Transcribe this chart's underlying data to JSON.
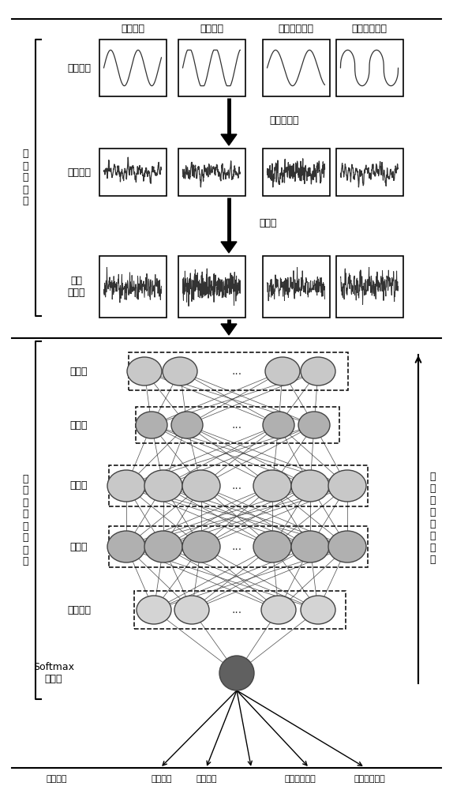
{
  "top_labels": [
    "正常磨损",
    "急剧磨损",
    "磨损振动异常",
    "锋利振动异常"
  ],
  "process_labels": [
    "傅里叶拟合",
    "归一化"
  ],
  "section_label_left_top": "数\n据\n预\n处\n理",
  "section_label_left_bot": "一\n维\n卷\n积\n神\n经\n网\n络",
  "section_label_right_bot": "误\n差\n逐\n层\n反\n向\n传\n播",
  "row_labels": [
    "原始信号",
    "电流杂波",
    "杂波\n归一化"
  ],
  "layer_labels": [
    "卷积层",
    "池化层",
    "卷积层",
    "池化层",
    "全连接层",
    "Softmax\n分类器"
  ],
  "bottom_labels": [
    "识别结果",
    "正常磨损",
    "急剧磨损",
    "磨损振动异常",
    "锋利振动异常"
  ],
  "bg_color": "#ffffff",
  "node_color_light": "#c8c8c8",
  "node_color_mid": "#b0b0b0",
  "node_color_dark": "#606060"
}
